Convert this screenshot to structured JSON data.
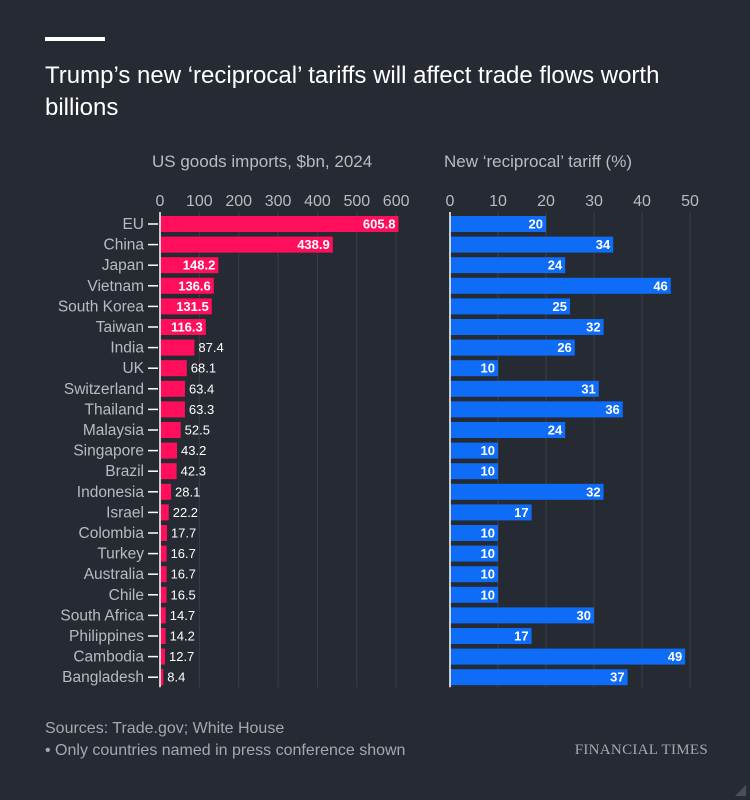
{
  "headline": "Trump’s new ‘reciprocal’ tariffs will affect trade flows worth billions",
  "sources": "Sources: Trade.gov; White House",
  "note": "• Only countries named in press conference shown",
  "brand": "FINANCIAL TIMES",
  "colors": {
    "imports": "#ff0f5b",
    "tariff": "#0f6cf7",
    "background": "#262a33",
    "muted": "#a6a8ae"
  },
  "chart_data": [
    {
      "type": "bar",
      "orientation": "horizontal",
      "title": "US goods imports, $bn, 2024",
      "ticks": [
        0,
        100,
        200,
        300,
        400,
        500,
        600
      ],
      "xlim": [
        0,
        625
      ],
      "categories": [
        "EU",
        "China",
        "Japan",
        "Vietnam",
        "South Korea",
        "Taiwan",
        "India",
        "UK",
        "Switzerland",
        "Thailand",
        "Malaysia",
        "Singapore",
        "Brazil",
        "Indonesia",
        "Israel",
        "Colombia",
        "Turkey",
        "Australia",
        "Chile",
        "South Africa",
        "Philippines",
        "Cambodia",
        "Bangladesh"
      ],
      "values": [
        605.8,
        438.9,
        148.2,
        136.6,
        131.5,
        116.3,
        87.4,
        68.1,
        63.4,
        63.3,
        52.5,
        43.2,
        42.3,
        28.1,
        22.2,
        17.7,
        16.7,
        16.7,
        16.5,
        14.7,
        14.2,
        12.7,
        8.4
      ],
      "labels": [
        "605.8",
        "438.9",
        "148.2",
        "136.6",
        "131.5",
        "116.3",
        "87.4",
        "68.1",
        "63.4",
        "63.3",
        "52.5",
        "43.2",
        "42.3",
        "28.1",
        "22.2",
        "17.7",
        "16.7",
        "16.7",
        "16.5",
        "14.7",
        "14.2",
        "12.7",
        "8.4"
      ]
    },
    {
      "type": "bar",
      "orientation": "horizontal",
      "title": "New ‘reciprocal’ tariff (%)",
      "ticks": [
        0,
        10,
        20,
        30,
        40,
        50
      ],
      "xlim": [
        0,
        50
      ],
      "categories": [
        "EU",
        "China",
        "Japan",
        "Vietnam",
        "South Korea",
        "Taiwan",
        "India",
        "UK",
        "Switzerland",
        "Thailand",
        "Malaysia",
        "Singapore",
        "Brazil",
        "Indonesia",
        "Israel",
        "Colombia",
        "Turkey",
        "Australia",
        "Chile",
        "South Africa",
        "Philippines",
        "Cambodia",
        "Bangladesh"
      ],
      "values": [
        20,
        34,
        24,
        46,
        25,
        32,
        26,
        10,
        31,
        36,
        24,
        10,
        10,
        32,
        17,
        10,
        10,
        10,
        10,
        30,
        17,
        49,
        37
      ],
      "labels": [
        "20",
        "34",
        "24",
        "46",
        "25",
        "32",
        "26",
        "10",
        "31",
        "36",
        "24",
        "10",
        "10",
        "32",
        "17",
        "10",
        "10",
        "10",
        "10",
        "30",
        "17",
        "49",
        "37"
      ]
    }
  ]
}
